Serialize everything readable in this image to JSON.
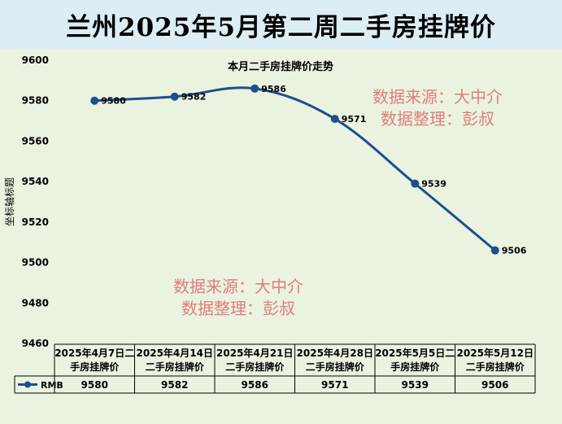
{
  "page_title": "兰州2025年5月第二周二手房挂牌价",
  "watermarks": [
    {
      "line1": "数据来源：大中介",
      "line2": "数据整理：彭叔"
    },
    {
      "line1": "数据来源：大中介",
      "line2": "数据整理：彭叔"
    }
  ],
  "colors": {
    "line": "#1f4e8c",
    "title_bg": "#dcedf5",
    "plot_bg": "#eaf3e0",
    "watermark": "#e07d7d"
  },
  "chart_data": {
    "type": "line",
    "title": "本月二手房挂牌价走势",
    "ylabel": "坐标轴标题",
    "xlabel": "",
    "ylim": [
      9460,
      9600
    ],
    "yticks": [
      9460,
      9480,
      9500,
      9520,
      9540,
      9560,
      9580,
      9600
    ],
    "categories": [
      [
        "2025年4月7日二",
        "手房挂牌价"
      ],
      [
        "2025年4月14日",
        "二手房挂牌价"
      ],
      [
        "2025年4月21日",
        "二手房挂牌价"
      ],
      [
        "2025年4月28日",
        "二手房挂牌价"
      ],
      [
        "2025年5月5日二",
        "手房挂牌价"
      ],
      [
        "2025年5月12日",
        "二手房挂牌价"
      ]
    ],
    "series": [
      {
        "name": "RMB",
        "values": [
          9580,
          9582,
          9586,
          9571,
          9539,
          9506
        ]
      }
    ],
    "grid": false,
    "legend": "data-table"
  }
}
